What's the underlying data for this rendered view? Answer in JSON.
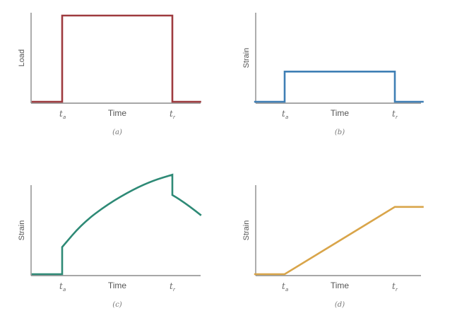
{
  "chart_data": [
    {
      "type": "line",
      "caption": "(a)",
      "ylabel": "Load",
      "xlabel": "Time",
      "ticks": [
        {
          "main": "t",
          "sub": "a"
        },
        {
          "main": "t",
          "sub": "r"
        }
      ],
      "color": "#9e3b3f",
      "x": [
        0,
        0.18,
        0.18,
        0.83,
        0.83,
        1.0
      ],
      "y": [
        0,
        0,
        1,
        1,
        0,
        0
      ]
    },
    {
      "type": "line",
      "caption": "(b)",
      "ylabel": "Strain",
      "xlabel": "Time",
      "ticks": [
        {
          "main": "t",
          "sub": "a"
        },
        {
          "main": "t",
          "sub": "r"
        }
      ],
      "color": "#3f7fb5",
      "x": [
        0,
        0.18,
        0.18,
        0.83,
        0.83,
        1.0
      ],
      "y": [
        0,
        0,
        0.35,
        0.35,
        0,
        0
      ]
    },
    {
      "type": "line",
      "caption": "(c)",
      "ylabel": "Strain",
      "xlabel": "Time",
      "ticks": [
        {
          "main": "t",
          "sub": "a"
        },
        {
          "main": "t",
          "sub": "r"
        }
      ],
      "color": "#2e8a76",
      "x": [
        0,
        0.18,
        0.18,
        0.3,
        0.45,
        0.6,
        0.72,
        0.83,
        0.83,
        0.9,
        1.0
      ],
      "y": [
        0,
        0,
        0.24,
        0.45,
        0.62,
        0.75,
        0.83,
        0.88,
        0.7,
        0.64,
        0.52
      ]
    },
    {
      "type": "line",
      "caption": "(d)",
      "ylabel": "Strain",
      "xlabel": "Time",
      "ticks": [
        {
          "main": "t",
          "sub": "a"
        },
        {
          "main": "t",
          "sub": "r"
        }
      ],
      "color": "#d9a54a",
      "x": [
        0,
        0.18,
        0.83,
        1.0
      ],
      "y": [
        0,
        0,
        0.78,
        0.78
      ]
    }
  ]
}
